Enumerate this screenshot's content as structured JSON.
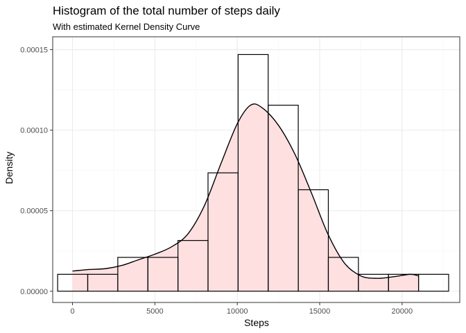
{
  "chart_data": {
    "type": "histogram",
    "title": "Histogram of the total number of steps daily",
    "subtitle": "With estimated Kernel Density Curve",
    "xlabel": "Steps",
    "ylabel": "Density",
    "xlim": [
      -1200,
      23500
    ],
    "ylim": [
      -7e-06,
      0.000158
    ],
    "x_ticks": [
      0,
      5000,
      10000,
      15000,
      20000
    ],
    "x_tick_labels": [
      "0",
      "5000",
      "10000",
      "15000",
      "20000"
    ],
    "y_ticks": [
      0,
      5e-05,
      0.0001,
      0.00015
    ],
    "y_tick_labels": [
      "0.00000",
      "0.00005",
      "0.00010",
      "0.00015"
    ],
    "grid": true,
    "bins": {
      "edges": [
        -900,
        925,
        2750,
        4575,
        6400,
        8225,
        10050,
        11875,
        13700,
        15525,
        17350,
        19175,
        21000,
        22825
      ],
      "density": [
        1.05e-05,
        1.05e-05,
        2.1e-05,
        2.1e-05,
        3.15e-05,
        7.35e-05,
        0.000147,
        0.0001155,
        6.3e-05,
        2.1e-05,
        1.05e-05,
        1.05e-05,
        1.05e-05
      ]
    },
    "density_curve": {
      "x": [
        0,
        500,
        1000,
        2000,
        3000,
        4000,
        5000,
        6000,
        7000,
        8000,
        9000,
        10000,
        10800,
        11500,
        12500,
        13500,
        14500,
        15500,
        16500,
        17500,
        18500,
        19500,
        20500,
        21000
      ],
      "y": [
        1.25e-05,
        1.3e-05,
        1.35e-05,
        1.4e-05,
        1.6e-05,
        1.95e-05,
        2.3e-05,
        2.75e-05,
        3.55e-05,
        5.3e-05,
        7.9e-05,
        0.000104,
        0.0001155,
        0.000114,
        0.000103,
        8.5e-05,
        6.1e-05,
        3.55e-05,
        1.75e-05,
        9.5e-06,
        8e-06,
        9e-06,
        1.05e-05,
        9.5e-06
      ]
    },
    "colors": {
      "fill": "#ffe0e1",
      "bar_stroke": "#000000",
      "curve": "#000000",
      "grid_major": "#ebebeb",
      "grid_minor": "#f5f5f5",
      "panel_border": "#333333"
    }
  }
}
